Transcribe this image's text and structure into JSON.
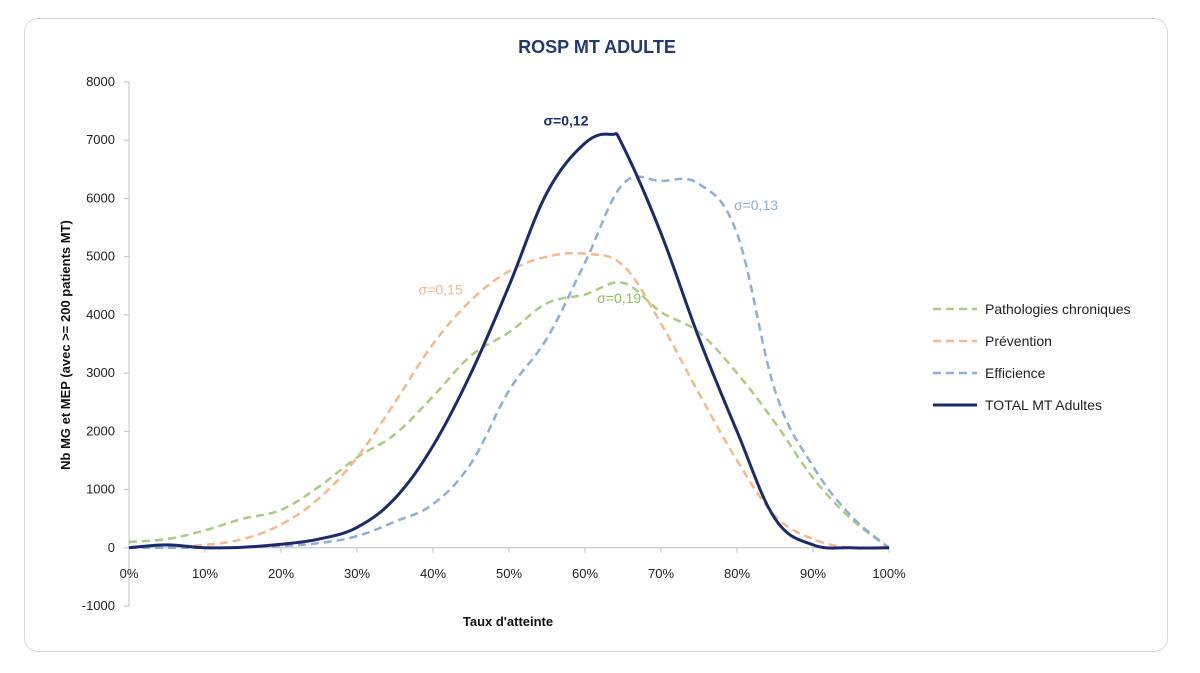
{
  "chart_data": {
    "type": "line",
    "title": "ROSP MT ADULTE",
    "xlabel": "Taux d'atteinte",
    "ylabel": "Nb MG et MEP (avec >= 200 patients MT)",
    "xlim": [
      0,
      1
    ],
    "ylim": [
      -1000,
      8000
    ],
    "x_ticks": [
      "0%",
      "10%",
      "20%",
      "30%",
      "40%",
      "50%",
      "60%",
      "70%",
      "80%",
      "90%",
      "100%"
    ],
    "y_ticks": [
      "-1000",
      "0",
      "1000",
      "2000",
      "3000",
      "4000",
      "5000",
      "6000",
      "7000",
      "8000"
    ],
    "grid": false,
    "legend_position": "right",
    "series": [
      {
        "name": "Pathologies chroniques",
        "color": "#a9cd7f",
        "dashed": true,
        "width": 2.5,
        "x": [
          0,
          0.05,
          0.1,
          0.15,
          0.2,
          0.25,
          0.3,
          0.35,
          0.4,
          0.45,
          0.5,
          0.55,
          0.6,
          0.65,
          0.7,
          0.75,
          0.8,
          0.85,
          0.9,
          0.95,
          1.0
        ],
        "y": [
          100,
          150,
          300,
          500,
          650,
          1050,
          1550,
          1950,
          2600,
          3300,
          3700,
          4200,
          4350,
          4550,
          4050,
          3700,
          3000,
          2150,
          1200,
          500,
          0
        ]
      },
      {
        "name": "Prévention",
        "color": "#f5b98a",
        "dashed": true,
        "width": 2.5,
        "x": [
          0,
          0.05,
          0.1,
          0.15,
          0.2,
          0.25,
          0.3,
          0.35,
          0.4,
          0.45,
          0.5,
          0.55,
          0.6,
          0.65,
          0.7,
          0.75,
          0.8,
          0.85,
          0.9,
          0.95,
          1.0
        ],
        "y": [
          0,
          20,
          50,
          150,
          400,
          850,
          1550,
          2500,
          3500,
          4250,
          4750,
          5000,
          5050,
          4850,
          3850,
          2650,
          1500,
          550,
          150,
          0,
          0
        ]
      },
      {
        "name": "Efficience",
        "color": "#8eaed8",
        "dashed": true,
        "width": 2.5,
        "x": [
          0,
          0.05,
          0.1,
          0.15,
          0.2,
          0.25,
          0.3,
          0.35,
          0.4,
          0.45,
          0.5,
          0.55,
          0.6,
          0.65,
          0.7,
          0.75,
          0.8,
          0.85,
          0.9,
          0.95,
          1.0
        ],
        "y": [
          0,
          0,
          0,
          10,
          30,
          80,
          200,
          450,
          750,
          1450,
          2700,
          3600,
          4900,
          6250,
          6300,
          6250,
          5400,
          2700,
          1400,
          550,
          0
        ]
      },
      {
        "name": "TOTAL MT Adultes",
        "color": "#1b2a6b",
        "dashed": false,
        "width": 3,
        "x": [
          0,
          0.05,
          0.1,
          0.15,
          0.2,
          0.25,
          0.3,
          0.35,
          0.4,
          0.45,
          0.5,
          0.55,
          0.6,
          0.635,
          0.65,
          0.7,
          0.75,
          0.8,
          0.85,
          0.9,
          0.95,
          1.0
        ],
        "y": [
          0,
          50,
          0,
          10,
          60,
          150,
          350,
          850,
          1750,
          3000,
          4500,
          6100,
          6950,
          7100,
          6900,
          5400,
          3600,
          2000,
          500,
          50,
          0,
          0
        ]
      }
    ],
    "annotations": [
      {
        "text": "σ=0,12",
        "x": 0.575,
        "y": 7250,
        "color": "#1b2a6b",
        "bold": true
      },
      {
        "text": "σ=0,13",
        "x": 0.825,
        "y": 5800,
        "color": "#8eaed8",
        "bold": false
      },
      {
        "text": "σ=0,15",
        "x": 0.41,
        "y": 4350,
        "color": "#f5b98a",
        "bold": false
      },
      {
        "text": "σ=0,19",
        "x": 0.645,
        "y": 4200,
        "color": "#8fbf5a",
        "bold": false
      }
    ]
  }
}
